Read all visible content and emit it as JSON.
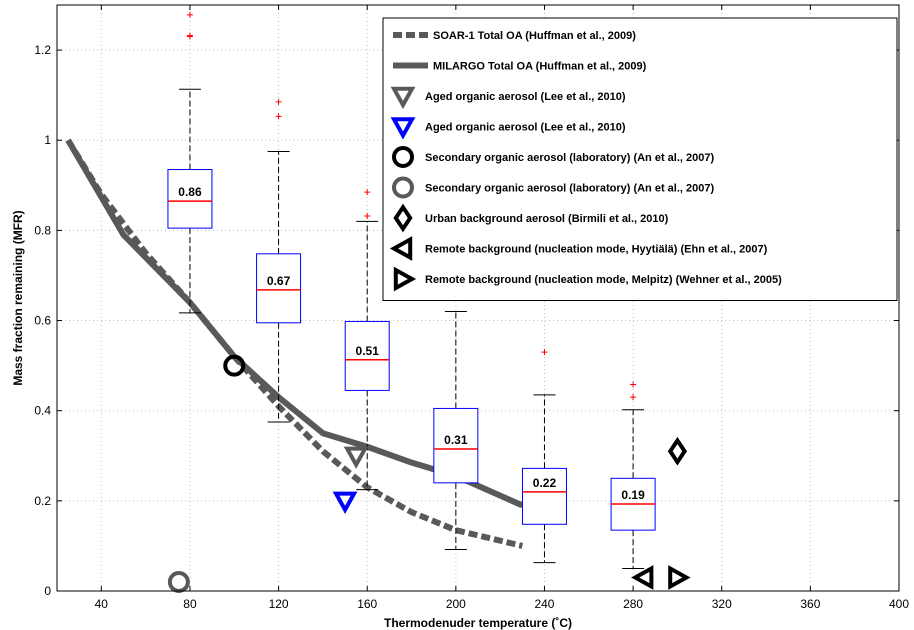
{
  "chart_data": {
    "type": "box",
    "xlabel": "Thermodenuder temperature (˚C)",
    "ylabel": "Mass fraction remaining (MFR)",
    "xlim": [
      20,
      400
    ],
    "ylim": [
      0,
      1.3
    ],
    "xticks": [
      40,
      80,
      120,
      160,
      200,
      240,
      280,
      320,
      360,
      400
    ],
    "yticks": [
      0,
      0.2,
      0.4,
      0.6,
      0.8,
      1,
      1.2
    ],
    "xtick_labels": [
      "40",
      "80",
      "120",
      "160",
      "200",
      "240",
      "280",
      "320",
      "360",
      "400"
    ],
    "ytick_labels": [
      "0",
      "0.2",
      "0.4",
      "0.6",
      "0.8",
      "1",
      "1.2"
    ],
    "grid": true,
    "legend_position": "top-right",
    "boxes": [
      {
        "x": 80,
        "q1": 0.805,
        "median": 0.865,
        "q3": 0.935,
        "whisker_low": 0.617,
        "whisker_high": 1.113,
        "outliers": [
          1.23,
          1.232,
          1.278
        ],
        "label": "0.86"
      },
      {
        "x": 120,
        "q1": 0.595,
        "median": 0.668,
        "q3": 0.748,
        "whisker_low": 0.375,
        "whisker_high": 0.975,
        "outliers": [
          1.053,
          1.085
        ],
        "label": "0.67"
      },
      {
        "x": 160,
        "q1": 0.445,
        "median": 0.513,
        "q3": 0.598,
        "whisker_low": 0.225,
        "whisker_high": 0.82,
        "outliers": [
          0.832,
          0.885
        ],
        "label": "0.51"
      },
      {
        "x": 200,
        "q1": 0.24,
        "median": 0.315,
        "q3": 0.405,
        "whisker_low": 0.092,
        "whisker_high": 0.62,
        "outliers": [],
        "label": "0.31"
      },
      {
        "x": 240,
        "q1": 0.148,
        "median": 0.22,
        "q3": 0.272,
        "whisker_low": 0.063,
        "whisker_high": 0.435,
        "outliers": [
          0.53
        ],
        "label": "0.22"
      },
      {
        "x": 280,
        "q1": 0.135,
        "median": 0.193,
        "q3": 0.25,
        "whisker_low": 0.05,
        "whisker_high": 0.402,
        "outliers": [
          0.43,
          0.458
        ],
        "label": "0.19"
      }
    ],
    "series": [
      {
        "name": "SOAR-1 Total OA (Huffman et al., 2009)",
        "style": "dashed",
        "color": "#595959",
        "x": [
          25,
          40,
          60,
          80,
          100,
          120,
          140,
          160,
          180,
          200,
          230
        ],
        "y": [
          1.0,
          0.88,
          0.75,
          0.64,
          0.52,
          0.41,
          0.31,
          0.23,
          0.175,
          0.135,
          0.1
        ]
      },
      {
        "name": "MILARGO Total OA (Huffman et al., 2009)",
        "style": "solid",
        "color": "#595959",
        "x": [
          25,
          50,
          80,
          100,
          120,
          140,
          160,
          180,
          200,
          230
        ],
        "y": [
          1.0,
          0.79,
          0.64,
          0.52,
          0.43,
          0.35,
          0.32,
          0.285,
          0.255,
          0.19
        ]
      }
    ],
    "markers": [
      {
        "name": "Aged organic aerosol (Lee et al., 2010)",
        "shape": "triangle-down",
        "color": "#595959",
        "x": 155,
        "y": 0.3
      },
      {
        "name": "Aged organic aerosol (Lee et al., 2010)",
        "shape": "triangle-down",
        "color": "#0000ff",
        "x": 150,
        "y": 0.2
      },
      {
        "name": "Secondary organic aerosol (laboratory) (An et al., 2007)",
        "shape": "circle",
        "color": "#000000",
        "x": 100,
        "y": 0.5
      },
      {
        "name": "Secondary organic aerosol (laboratory) (An et al., 2007)",
        "shape": "circle",
        "color": "#595959",
        "x": 75,
        "y": 0.02
      },
      {
        "name": "Urban background aerosol (Birmili et al., 2010)",
        "shape": "diamond",
        "color": "#000000",
        "x": 300,
        "y": 0.31
      },
      {
        "name": "Remote background (nucleation mode, Hyytiälä) (Ehn et al., 2007)",
        "shape": "triangle-left",
        "color": "#000000",
        "x": 285,
        "y": 0.03
      },
      {
        "name": "Remote background (nucleation mode, Melpitz) (Wehner et al., 2005)",
        "shape": "triangle-right",
        "color": "#000000",
        "x": 300,
        "y": 0.03
      }
    ],
    "legend": [
      {
        "label": "SOAR-1 Total OA (Huffman et al., 2009)",
        "kind": "dashed",
        "color": "#595959"
      },
      {
        "label": "MILARGO Total OA (Huffman et al., 2009)",
        "kind": "solid",
        "color": "#595959"
      },
      {
        "label": "Aged organic aerosol (Lee et al., 2010)",
        "kind": "triangle-down",
        "color": "#595959"
      },
      {
        "label": "Aged organic aerosol (Lee et al., 2010)",
        "kind": "triangle-down",
        "color": "#0000ff"
      },
      {
        "label": "Secondary organic aerosol (laboratory) (An et al., 2007)",
        "kind": "circle",
        "color": "#000000"
      },
      {
        "label": "Secondary organic aerosol (laboratory) (An et al., 2007)",
        "kind": "circle",
        "color": "#595959"
      },
      {
        "label": "Urban background aerosol (Birmili et al., 2010)",
        "kind": "diamond",
        "color": "#000000"
      },
      {
        "label": "Remote background (nucleation mode, Hyytiälä) (Ehn et al., 2007)",
        "kind": "triangle-left",
        "color": "#000000"
      },
      {
        "label": "Remote background (nucleation mode, Melpitz) (Wehner et al., 2005)",
        "kind": "triangle-right",
        "color": "#000000"
      }
    ],
    "colors": {
      "box": "#0000ff",
      "median": "#ff0000",
      "outlier": "#ff0000",
      "grid": "#bfbfbf"
    }
  }
}
